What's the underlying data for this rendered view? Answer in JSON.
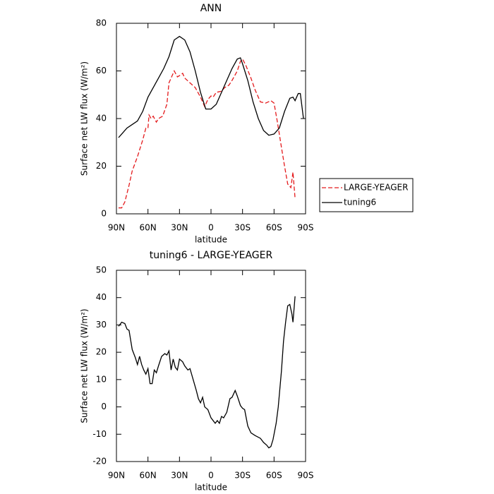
{
  "chart_data": [
    {
      "type": "line",
      "title": "ANN",
      "x_label": "latitude",
      "y_label": "Surface net LW flux (W/m²)",
      "xlim": [
        90,
        -90
      ],
      "ylim": [
        0,
        80
      ],
      "xticks": [
        {
          "value": 90,
          "label": "90N"
        },
        {
          "value": 60,
          "label": "60N"
        },
        {
          "value": 30,
          "label": "30N"
        },
        0,
        {
          "value": -30,
          "label": "30S"
        },
        {
          "value": -60,
          "label": "60S"
        },
        {
          "value": -90,
          "label": "90S"
        }
      ],
      "yticks": [
        0,
        20,
        40,
        60,
        80
      ],
      "legend": "right",
      "series": [
        {
          "name": "LARGE-YEAGER",
          "color": "#e41a1c",
          "line_style": "dashed",
          "x": [
            88,
            85,
            82,
            78,
            75,
            70,
            65,
            62,
            60,
            59,
            57,
            55,
            52,
            50,
            46,
            42,
            40,
            38,
            35,
            32,
            30,
            27,
            25,
            20,
            15,
            10,
            6,
            3,
            0,
            -2,
            -5,
            -10,
            -13,
            -17,
            -20,
            -25,
            -28,
            -30,
            -33,
            -38,
            -42,
            -47,
            -52,
            -57,
            -60,
            -63,
            -67,
            -70,
            -73,
            -76,
            -78,
            -80
          ],
          "values": [
            2.5,
            2.5,
            5,
            12,
            18,
            24,
            31,
            36,
            36,
            41.5,
            40,
            41,
            38.5,
            40,
            41,
            46,
            55,
            57,
            60,
            57.5,
            58,
            59,
            57,
            55,
            53,
            49,
            45,
            48,
            49.5,
            49,
            51,
            51.5,
            53,
            54,
            56,
            60,
            64,
            65,
            62.5,
            57,
            52,
            47,
            46.5,
            47.5,
            46.5,
            39,
            28,
            20,
            12.5,
            11,
            17.5,
            6.5
          ]
        },
        {
          "name": "tuning6",
          "color": "#000000",
          "line_style": "solid",
          "x": [
            88,
            85,
            80,
            75,
            70,
            65,
            60,
            55,
            50,
            45,
            40,
            35,
            30,
            25,
            20,
            15,
            10,
            5,
            0,
            -5,
            -10,
            -15,
            -20,
            -25,
            -28,
            -30,
            -35,
            -40,
            -45,
            -50,
            -55,
            -60,
            -65,
            -70,
            -75,
            -78,
            -80,
            -83,
            -85,
            -88
          ],
          "values": [
            32,
            33.5,
            36,
            37.5,
            39,
            43,
            49,
            53,
            57,
            61,
            66,
            73,
            74.5,
            73,
            68,
            60,
            51,
            44,
            44,
            46,
            51,
            56,
            61,
            65,
            65.5,
            63,
            56,
            47,
            40,
            35,
            33,
            33.5,
            36,
            43,
            48.5,
            49,
            47.5,
            50.5,
            50.5,
            40
          ]
        }
      ]
    },
    {
      "type": "line",
      "title": "tuning6 - LARGE-YEAGER",
      "x_label": "latitude",
      "y_label": "Surface net LW flux (W/m²)",
      "xlim": [
        90,
        -90
      ],
      "ylim": [
        -20,
        50
      ],
      "xticks": [
        {
          "value": 90,
          "label": "90N"
        },
        {
          "value": 60,
          "label": "60N"
        },
        {
          "value": 30,
          "label": "30N"
        },
        0,
        {
          "value": -30,
          "label": "30S"
        },
        {
          "value": -60,
          "label": "60S"
        },
        {
          "value": -90,
          "label": "90S"
        }
      ],
      "yticks": [
        -20,
        -10,
        0,
        10,
        20,
        30,
        40,
        50
      ],
      "color": "#000000",
      "x": [
        88,
        85,
        82,
        80,
        78,
        75,
        72,
        70,
        68,
        66,
        64,
        62,
        60,
        58,
        56,
        54,
        52,
        50,
        47,
        44,
        42,
        40,
        38,
        36,
        34,
        32,
        30,
        27,
        25,
        22,
        20,
        17,
        14,
        12,
        10,
        8,
        6,
        3,
        0,
        -2,
        -4,
        -6,
        -8,
        -10,
        -12,
        -15,
        -18,
        -20,
        -23,
        -25,
        -28,
        -30,
        -32,
        -35,
        -38,
        -42,
        -47,
        -50,
        -53,
        -55,
        -57,
        -59,
        -62,
        -64,
        -67,
        -69,
        -71,
        -73,
        -75,
        -77,
        -78,
        -80
      ],
      "values": [
        29.5,
        31,
        30.5,
        28.5,
        28,
        21,
        18,
        15.5,
        18.5,
        15.5,
        13.5,
        12,
        14,
        8.5,
        8.5,
        13.5,
        12.5,
        15,
        18.5,
        19.5,
        19,
        20.5,
        13.5,
        17.5,
        14.5,
        13.5,
        17.5,
        16.5,
        15,
        13.5,
        14,
        10,
        6,
        3,
        1.5,
        3.5,
        0,
        -1,
        -4,
        -5,
        -6,
        -5,
        -6,
        -3.5,
        -4,
        -2,
        3,
        3.5,
        6,
        4,
        0.5,
        -0.5,
        -1,
        -7,
        -9.5,
        -10.5,
        -11.5,
        -13,
        -14,
        -15,
        -14.5,
        -12,
        -6,
        0,
        13,
        24,
        31,
        37,
        37.5,
        34,
        31,
        40.5
      ]
    }
  ]
}
